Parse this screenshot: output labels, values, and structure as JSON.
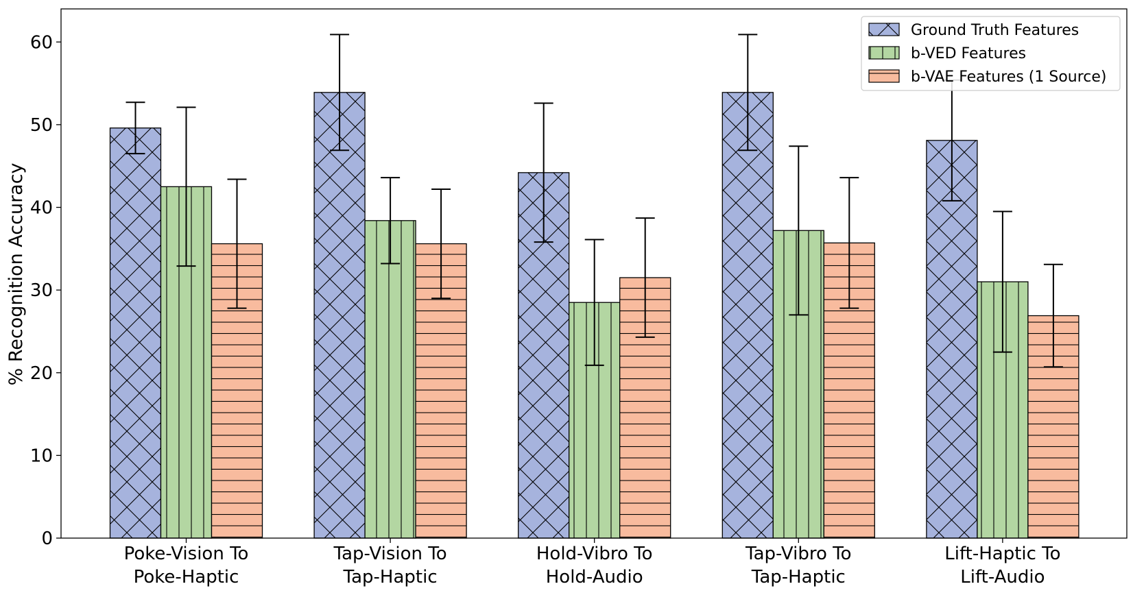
{
  "chart_data": {
    "type": "bar",
    "title": "",
    "xlabel": "",
    "ylabel": "% Recognition Accuracy",
    "ylim": [
      0,
      64
    ],
    "yticks": [
      0,
      10,
      20,
      30,
      40,
      50,
      60
    ],
    "grid": false,
    "legend_position": "top-right",
    "categories": [
      [
        "Poke-Vision To",
        "Poke-Haptic"
      ],
      [
        "Tap-Vision To",
        "Tap-Haptic"
      ],
      [
        "Hold-Vibro To",
        "Hold-Audio"
      ],
      [
        "Tap-Vibro To",
        "Tap-Haptic"
      ],
      [
        "Lift-Haptic To",
        "Lift-Audio"
      ]
    ],
    "series": [
      {
        "name": "Ground Truth Features",
        "color": "#a6b3dd",
        "hatch": "crosshatch",
        "values": [
          49.6,
          53.9,
          44.2,
          53.9,
          48.1
        ],
        "error": [
          3.1,
          7.0,
          8.4,
          7.0,
          7.3
        ]
      },
      {
        "name": "b-VED Features",
        "color": "#b3d6a2",
        "hatch": "vertical",
        "values": [
          42.5,
          38.4,
          28.5,
          37.2,
          31.0
        ],
        "error": [
          9.6,
          5.2,
          7.6,
          10.2,
          8.5
        ]
      },
      {
        "name": "b-VAE Features (1 Source)",
        "color": "#f8bb9e",
        "hatch": "horizontal",
        "values": [
          35.6,
          35.6,
          31.5,
          35.7,
          26.9
        ],
        "error": [
          7.8,
          6.6,
          7.2,
          7.9,
          6.2
        ]
      }
    ]
  }
}
